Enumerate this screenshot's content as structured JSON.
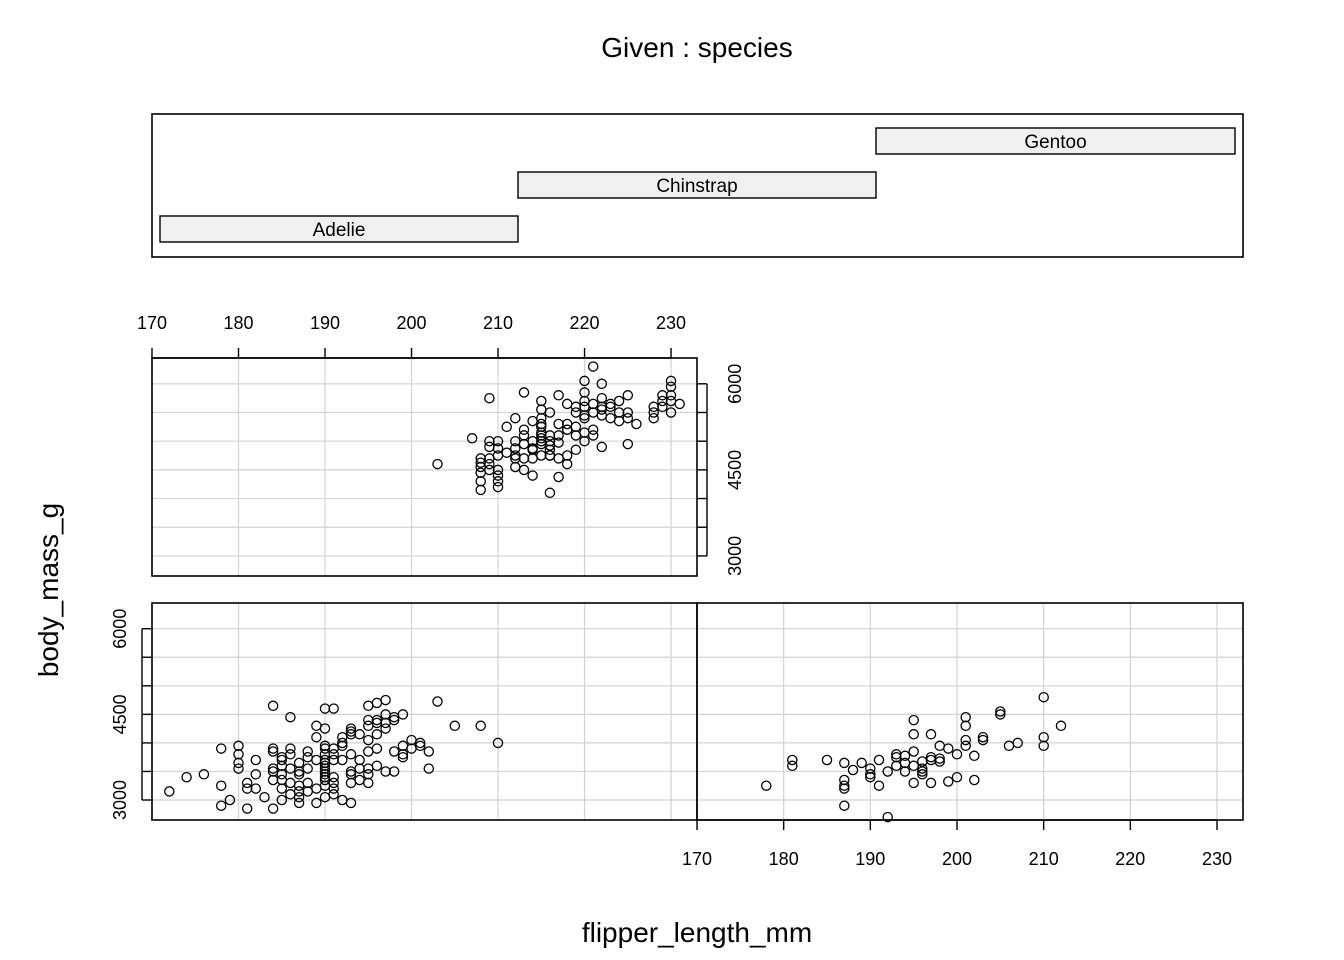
{
  "chart_data": {
    "type": "scatter",
    "title": "Given : species",
    "xlabel": "flipper_length_mm",
    "ylabel": "body_mass_g",
    "given_variable": "species",
    "given_levels": [
      "Adelie",
      "Chinstrap",
      "Gentoo"
    ],
    "xlim": [
      170,
      233
    ],
    "ylim": [
      2650,
      6450
    ],
    "x_ticks": [
      170,
      180,
      190,
      200,
      210,
      220,
      230
    ],
    "x_tick_labels": [
      "170",
      "180",
      "190",
      "200",
      "210",
      "220",
      "230"
    ],
    "y_ticks": [
      3000,
      3500,
      4000,
      4500,
      5000,
      5500,
      6000
    ],
    "y_tick_labels": [
      "3000",
      "4500",
      "6000"
    ],
    "y_labeled_ticks": [
      3000,
      4500,
      6000
    ],
    "grid": true,
    "series": [
      {
        "name": "Adelie",
        "points": [
          [
            172,
            3150
          ],
          [
            174,
            3400
          ],
          [
            176,
            3450
          ],
          [
            178,
            3250
          ],
          [
            178,
            3900
          ],
          [
            178,
            2900
          ],
          [
            179,
            3000
          ],
          [
            180,
            3950
          ],
          [
            180,
            3800
          ],
          [
            180,
            3650
          ],
          [
            180,
            3550
          ],
          [
            181,
            3300
          ],
          [
            181,
            2850
          ],
          [
            181,
            3200
          ],
          [
            182,
            3700
          ],
          [
            182,
            3200
          ],
          [
            182,
            3450
          ],
          [
            183,
            3050
          ],
          [
            184,
            3850
          ],
          [
            184,
            3900
          ],
          [
            184,
            3550
          ],
          [
            184,
            3350
          ],
          [
            184,
            3500
          ],
          [
            184,
            4650
          ],
          [
            184,
            2850
          ],
          [
            185,
            3600
          ],
          [
            185,
            3200
          ],
          [
            185,
            3000
          ],
          [
            185,
            3700
          ],
          [
            185,
            3350
          ],
          [
            185,
            3750
          ],
          [
            185,
            3450
          ],
          [
            186,
            3900
          ],
          [
            186,
            3550
          ],
          [
            186,
            3800
          ],
          [
            186,
            3100
          ],
          [
            186,
            3300
          ],
          [
            186,
            4450
          ],
          [
            187,
            3150
          ],
          [
            187,
            3650
          ],
          [
            187,
            3500
          ],
          [
            187,
            3450
          ],
          [
            187,
            3250
          ],
          [
            187,
            2950
          ],
          [
            187,
            3050
          ],
          [
            188,
            3300
          ],
          [
            188,
            3750
          ],
          [
            188,
            3550
          ],
          [
            188,
            3850
          ],
          [
            188,
            3150
          ],
          [
            189,
            3200
          ],
          [
            189,
            4300
          ],
          [
            189,
            3700
          ],
          [
            189,
            2950
          ],
          [
            189,
            4100
          ],
          [
            190,
            3350
          ],
          [
            190,
            3800
          ],
          [
            190,
            3500
          ],
          [
            190,
            3900
          ],
          [
            190,
            3650
          ],
          [
            190,
            3250
          ],
          [
            190,
            4250
          ],
          [
            190,
            3400
          ],
          [
            190,
            3950
          ],
          [
            190,
            4600
          ],
          [
            190,
            3700
          ],
          [
            190,
            3600
          ],
          [
            190,
            3550
          ],
          [
            190,
            3450
          ],
          [
            190,
            3050
          ],
          [
            191,
            4600
          ],
          [
            191,
            3700
          ],
          [
            191,
            3400
          ],
          [
            191,
            3200
          ],
          [
            191,
            3900
          ],
          [
            191,
            3800
          ],
          [
            191,
            3300
          ],
          [
            191,
            3100
          ],
          [
            192,
            3700
          ],
          [
            192,
            4000
          ],
          [
            192,
            3950
          ],
          [
            192,
            4100
          ],
          [
            192,
            3000
          ],
          [
            193,
            3300
          ],
          [
            193,
            3800
          ],
          [
            193,
            4150
          ],
          [
            193,
            2950
          ],
          [
            193,
            3450
          ],
          [
            193,
            3500
          ],
          [
            193,
            4200
          ],
          [
            193,
            4250
          ],
          [
            194,
            3700
          ],
          [
            194,
            4150
          ],
          [
            194,
            3550
          ],
          [
            194,
            3350
          ],
          [
            195,
            3300
          ],
          [
            195,
            4050
          ],
          [
            195,
            4400
          ],
          [
            195,
            4650
          ],
          [
            195,
            4300
          ],
          [
            195,
            3550
          ],
          [
            195,
            3850
          ],
          [
            195,
            3450
          ],
          [
            196,
            4700
          ],
          [
            196,
            4350
          ],
          [
            196,
            4150
          ],
          [
            196,
            3900
          ],
          [
            196,
            3600
          ],
          [
            196,
            4400
          ],
          [
            197,
            4750
          ],
          [
            197,
            4500
          ],
          [
            197,
            4350
          ],
          [
            197,
            3500
          ],
          [
            197,
            4250
          ],
          [
            198,
            3850
          ],
          [
            198,
            4450
          ],
          [
            198,
            4400
          ],
          [
            198,
            3500
          ],
          [
            199,
            3800
          ],
          [
            199,
            3950
          ],
          [
            199,
            3750
          ],
          [
            199,
            4500
          ],
          [
            200,
            4050
          ],
          [
            200,
            3900
          ],
          [
            201,
            4000
          ],
          [
            201,
            3950
          ],
          [
            202,
            3550
          ],
          [
            202,
            3850
          ],
          [
            203,
            4725
          ],
          [
            205,
            4300
          ],
          [
            208,
            4300
          ],
          [
            210,
            4000
          ]
        ]
      },
      {
        "name": "Chinstrap",
        "points": [
          [
            178,
            3250
          ],
          [
            181,
            3700
          ],
          [
            181,
            3600
          ],
          [
            185,
            3700
          ],
          [
            187,
            3650
          ],
          [
            187,
            3350
          ],
          [
            187,
            3250
          ],
          [
            187,
            3200
          ],
          [
            187,
            2900
          ],
          [
            188,
            3525
          ],
          [
            189,
            3650
          ],
          [
            190,
            3450
          ],
          [
            190,
            3400
          ],
          [
            190,
            3550
          ],
          [
            191,
            3250
          ],
          [
            191,
            3700
          ],
          [
            192,
            2700
          ],
          [
            192,
            3500
          ],
          [
            193,
            3750
          ],
          [
            193,
            3800
          ],
          [
            193,
            3600
          ],
          [
            194,
            3775
          ],
          [
            194,
            3500
          ],
          [
            194,
            3650
          ],
          [
            195,
            4400
          ],
          [
            195,
            4150
          ],
          [
            195,
            3300
          ],
          [
            195,
            3850
          ],
          [
            195,
            3600
          ],
          [
            196,
            3550
          ],
          [
            196,
            3675
          ],
          [
            196,
            3450
          ],
          [
            196,
            3500
          ],
          [
            197,
            3300
          ],
          [
            197,
            3750
          ],
          [
            197,
            4150
          ],
          [
            197,
            3700
          ],
          [
            198,
            3950
          ],
          [
            198,
            3675
          ],
          [
            198,
            3725
          ],
          [
            199,
            3325
          ],
          [
            199,
            3900
          ],
          [
            200,
            3800
          ],
          [
            200,
            3400
          ],
          [
            201,
            4050
          ],
          [
            201,
            4450
          ],
          [
            201,
            4300
          ],
          [
            201,
            3950
          ],
          [
            202,
            3350
          ],
          [
            202,
            3775
          ],
          [
            203,
            4100
          ],
          [
            203,
            4050
          ],
          [
            205,
            4550
          ],
          [
            205,
            4500
          ],
          [
            206,
            3950
          ],
          [
            207,
            4000
          ],
          [
            210,
            4800
          ],
          [
            210,
            4100
          ],
          [
            210,
            3950
          ],
          [
            212,
            4300
          ]
        ]
      },
      {
        "name": "Gentoo",
        "points": [
          [
            203,
            4600
          ],
          [
            207,
            5050
          ],
          [
            208,
            4300
          ],
          [
            208,
            4450
          ],
          [
            208,
            4700
          ],
          [
            208,
            4150
          ],
          [
            208,
            4625
          ],
          [
            208,
            4550
          ],
          [
            209,
            4500
          ],
          [
            209,
            4700
          ],
          [
            209,
            5000
          ],
          [
            209,
            5750
          ],
          [
            209,
            4900
          ],
          [
            209,
            4600
          ],
          [
            210,
            4400
          ],
          [
            210,
            4750
          ],
          [
            210,
            4200
          ],
          [
            210,
            5000
          ],
          [
            210,
            4875
          ],
          [
            210,
            4300
          ],
          [
            210,
            4500
          ],
          [
            211,
            5250
          ],
          [
            211,
            4800
          ],
          [
            212,
            4875
          ],
          [
            212,
            4550
          ],
          [
            212,
            4750
          ],
          [
            212,
            4700
          ],
          [
            212,
            5000
          ],
          [
            212,
            5400
          ],
          [
            213,
            4700
          ],
          [
            213,
            4950
          ],
          [
            213,
            5850
          ],
          [
            213,
            5200
          ],
          [
            213,
            4500
          ],
          [
            213,
            5100
          ],
          [
            214,
            4875
          ],
          [
            214,
            4850
          ],
          [
            214,
            5000
          ],
          [
            214,
            5350
          ],
          [
            214,
            4400
          ],
          [
            214,
            4700
          ],
          [
            215,
            5150
          ],
          [
            215,
            5400
          ],
          [
            215,
            5050
          ],
          [
            215,
            5700
          ],
          [
            215,
            5550
          ],
          [
            215,
            5250
          ],
          [
            215,
            5100
          ],
          [
            215,
            5000
          ],
          [
            215,
            5300
          ],
          [
            215,
            4950
          ],
          [
            215,
            4750
          ],
          [
            216,
            4925
          ],
          [
            216,
            4750
          ],
          [
            216,
            5000
          ],
          [
            216,
            5500
          ],
          [
            216,
            5100
          ],
          [
            216,
            4850
          ],
          [
            216,
            4100
          ],
          [
            216,
            4750
          ],
          [
            217,
            4700
          ],
          [
            217,
            5800
          ],
          [
            217,
            5300
          ],
          [
            217,
            4975
          ],
          [
            217,
            4375
          ],
          [
            217,
            5100
          ],
          [
            218,
            5200
          ],
          [
            218,
            5650
          ],
          [
            218,
            4600
          ],
          [
            218,
            5300
          ],
          [
            218,
            4750
          ],
          [
            218,
            5200
          ],
          [
            219,
            5250
          ],
          [
            219,
            5500
          ],
          [
            219,
            4850
          ],
          [
            219,
            5600
          ],
          [
            219,
            5100
          ],
          [
            220,
            5600
          ],
          [
            220,
            5850
          ],
          [
            220,
            5150
          ],
          [
            220,
            5450
          ],
          [
            220,
            5000
          ],
          [
            220,
            6050
          ],
          [
            220,
            5700
          ],
          [
            220,
            5400
          ],
          [
            221,
            6300
          ],
          [
            221,
            5100
          ],
          [
            221,
            5650
          ],
          [
            221,
            5200
          ],
          [
            221,
            5500
          ],
          [
            222,
            5600
          ],
          [
            222,
            5750
          ],
          [
            222,
            5450
          ],
          [
            222,
            6000
          ],
          [
            222,
            5550
          ],
          [
            222,
            4900
          ],
          [
            223,
            5650
          ],
          [
            223,
            5600
          ],
          [
            223,
            5400
          ],
          [
            224,
            5700
          ],
          [
            224,
            5350
          ],
          [
            224,
            5500
          ],
          [
            225,
            5800
          ],
          [
            225,
            4950
          ],
          [
            225,
            5400
          ],
          [
            225,
            5500
          ],
          [
            226,
            5300
          ],
          [
            228,
            5500
          ],
          [
            228,
            5400
          ],
          [
            228,
            5600
          ],
          [
            229,
            5600
          ],
          [
            229,
            5800
          ],
          [
            229,
            5700
          ],
          [
            230,
            5500
          ],
          [
            230,
            5800
          ],
          [
            230,
            6050
          ],
          [
            230,
            5950
          ],
          [
            230,
            5700
          ],
          [
            231,
            5650
          ]
        ]
      }
    ]
  }
}
